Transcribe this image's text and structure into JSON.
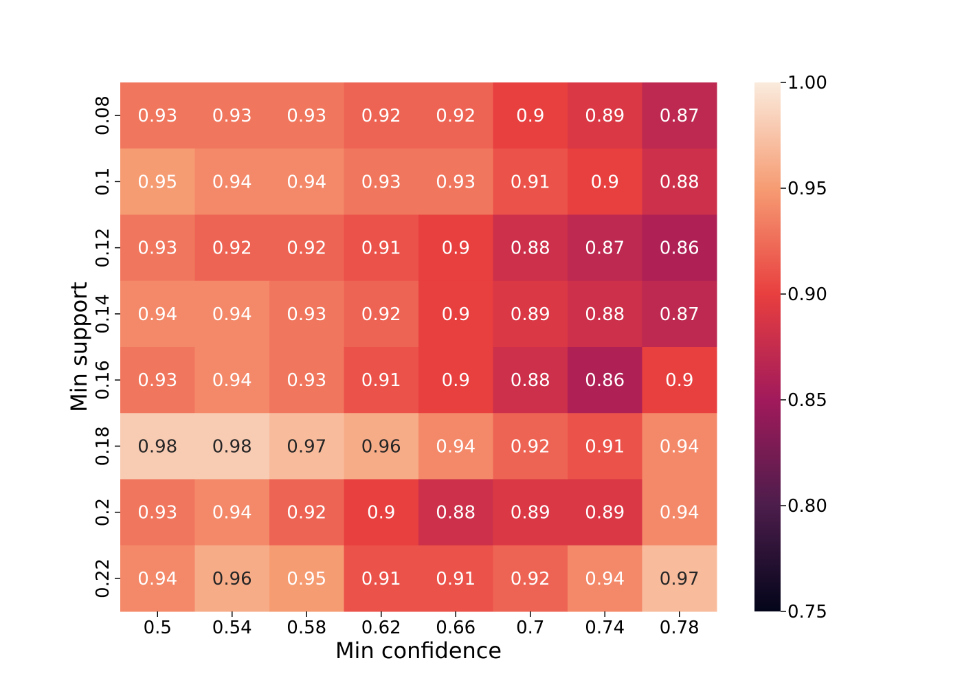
{
  "chart_data": {
    "type": "heatmap",
    "title": "",
    "xlabel": "Min confidence",
    "ylabel": "Min support",
    "x_categories": [
      "0.5",
      "0.54",
      "0.58",
      "0.62",
      "0.66",
      "0.7",
      "0.74",
      "0.78"
    ],
    "y_categories": [
      "0.08",
      "0.1",
      "0.12",
      "0.14",
      "0.16",
      "0.18",
      "0.2",
      "0.22"
    ],
    "values": [
      [
        0.93,
        0.93,
        0.93,
        0.92,
        0.92,
        0.9,
        0.89,
        0.87
      ],
      [
        0.95,
        0.94,
        0.94,
        0.93,
        0.93,
        0.91,
        0.9,
        0.88
      ],
      [
        0.93,
        0.92,
        0.92,
        0.91,
        0.9,
        0.88,
        0.87,
        0.86
      ],
      [
        0.94,
        0.94,
        0.93,
        0.92,
        0.9,
        0.89,
        0.88,
        0.87
      ],
      [
        0.93,
        0.94,
        0.93,
        0.91,
        0.9,
        0.88,
        0.86,
        0.9
      ],
      [
        0.98,
        0.98,
        0.97,
        0.96,
        0.94,
        0.92,
        0.91,
        0.94
      ],
      [
        0.93,
        0.94,
        0.92,
        0.9,
        0.88,
        0.89,
        0.89,
        0.94
      ],
      [
        0.94,
        0.96,
        0.95,
        0.91,
        0.91,
        0.92,
        0.94,
        0.97
      ]
    ],
    "annotations": [
      [
        "0.93",
        "0.93",
        "0.93",
        "0.92",
        "0.92",
        "0.9",
        "0.89",
        "0.87"
      ],
      [
        "0.95",
        "0.94",
        "0.94",
        "0.93",
        "0.93",
        "0.91",
        "0.9",
        "0.88"
      ],
      [
        "0.93",
        "0.92",
        "0.92",
        "0.91",
        "0.9",
        "0.88",
        "0.87",
        "0.86"
      ],
      [
        "0.94",
        "0.94",
        "0.93",
        "0.92",
        "0.9",
        "0.89",
        "0.88",
        "0.87"
      ],
      [
        "0.93",
        "0.94",
        "0.93",
        "0.91",
        "0.9",
        "0.88",
        "0.86",
        "0.9"
      ],
      [
        "0.98",
        "0.98",
        "0.97",
        "0.96",
        "0.94",
        "0.92",
        "0.91",
        "0.94"
      ],
      [
        "0.93",
        "0.94",
        "0.92",
        "0.9",
        "0.88",
        "0.89",
        "0.89",
        "0.94"
      ],
      [
        "0.94",
        "0.96",
        "0.95",
        "0.91",
        "0.91",
        "0.92",
        "0.94",
        "0.97"
      ]
    ],
    "colorbar": {
      "range": [
        0.75,
        1.0
      ],
      "ticks": [
        0.75,
        0.8,
        0.85,
        0.9,
        0.95,
        1.0
      ],
      "tick_labels": [
        "0.75",
        "0.80",
        "0.85",
        "0.90",
        "0.95",
        "1.00"
      ]
    },
    "colormap": "rocket",
    "colormap_stops": [
      {
        "v": 0.0,
        "c": "#03051a"
      },
      {
        "v": 0.2,
        "c": "#4c1d4b"
      },
      {
        "v": 0.4,
        "c": "#a11a5b"
      },
      {
        "v": 0.6,
        "c": "#e83f3f"
      },
      {
        "v": 0.8,
        "c": "#f69c73"
      },
      {
        "v": 1.0,
        "c": "#faebdd"
      }
    ],
    "annotation_colors": {
      "dark_bg_text": "#ffffff",
      "light_bg_text": "#262626"
    },
    "grid": false,
    "legend": "none"
  }
}
